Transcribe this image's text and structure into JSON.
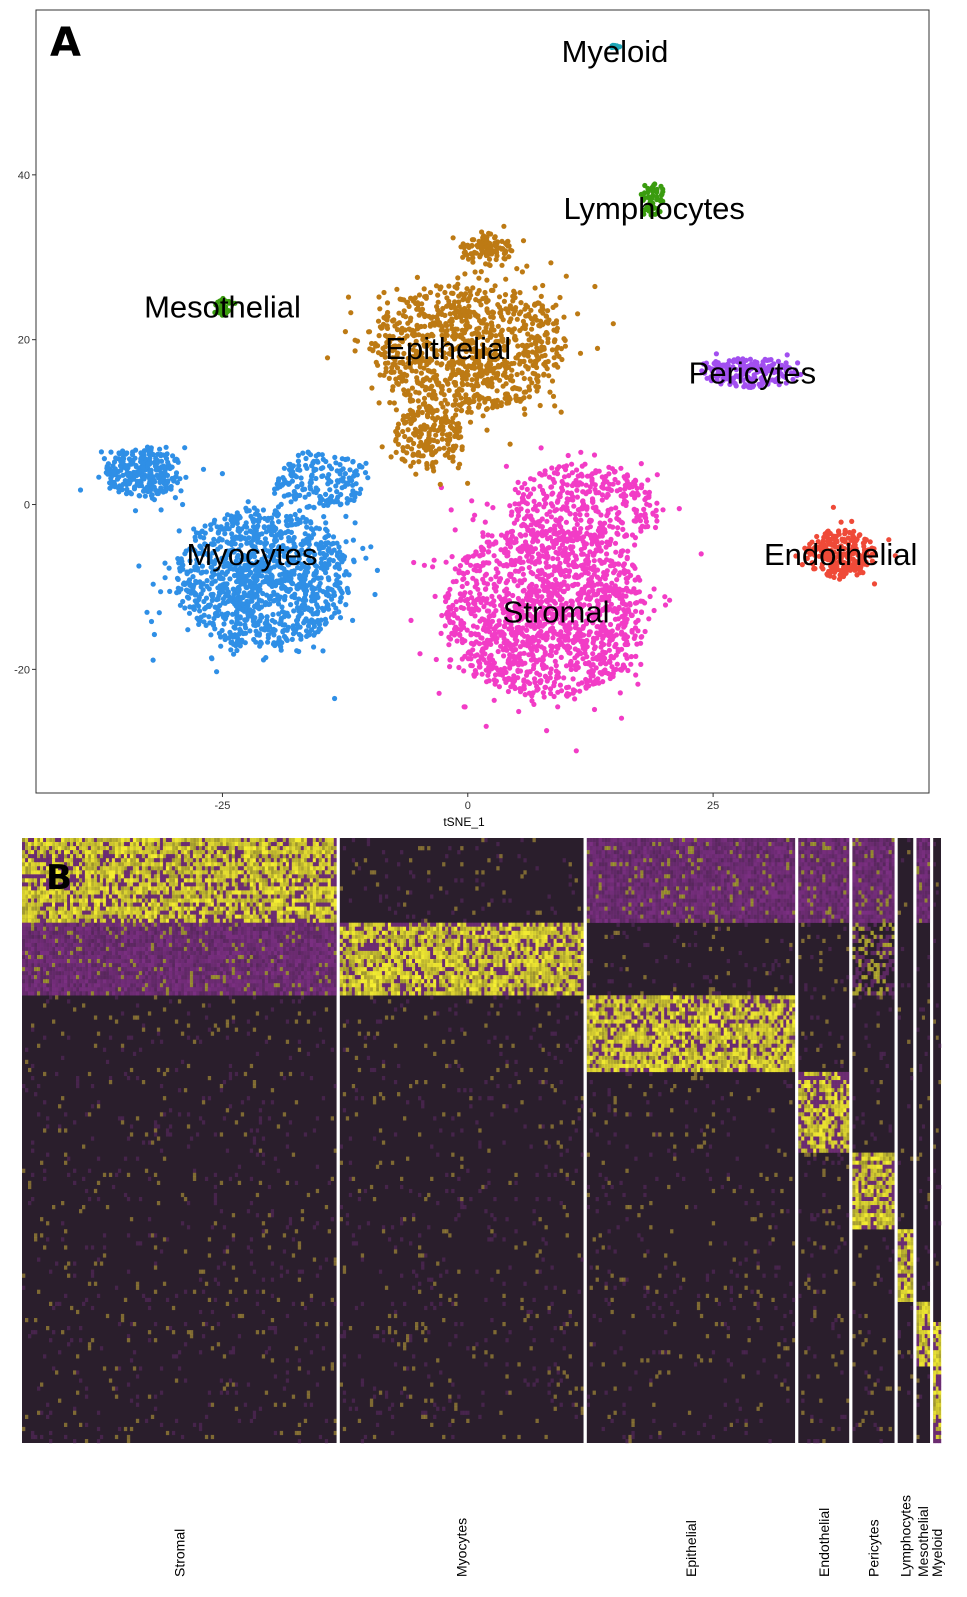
{
  "chart_data": [
    {
      "type": "scatter",
      "panel_label": "A",
      "title": "",
      "xlabel": "tSNE_1",
      "ylabel": "",
      "xlim": [
        -44,
        47
      ],
      "ylim": [
        -35,
        60
      ],
      "x_ticks": [
        -25,
        0,
        25
      ],
      "y_ticks": [
        -20,
        0,
        20,
        40
      ],
      "grid": false,
      "legend": "none",
      "series": [
        {
          "name": "Stromal",
          "color": "#f23cc6",
          "point_count": 1900,
          "labelled_center": [
            9,
            -13
          ],
          "blobs": [
            [
              8,
              -13,
              10.5,
              10.5,
              0.8
            ],
            [
              12,
              0,
              8,
              5,
              0.2
            ]
          ]
        },
        {
          "name": "Myocytes",
          "color": "#2f8fe6",
          "point_count": 1700,
          "labelled_center": [
            -22,
            -6
          ],
          "blobs": [
            [
              -21,
              -9,
              9,
              8.5,
              0.7
            ],
            [
              -33,
              4,
              4,
              3,
              0.18
            ],
            [
              -15,
              3,
              5,
              3.5,
              0.12
            ]
          ]
        },
        {
          "name": "Epithelial",
          "color": "#bd7a14",
          "point_count": 1300,
          "labelled_center": [
            -2,
            19
          ],
          "blobs": [
            [
              0,
              19,
              10,
              8,
              0.75
            ],
            [
              -4,
              8,
              4,
              4,
              0.15
            ],
            [
              2,
              31,
              2.5,
              2,
              0.1
            ]
          ]
        },
        {
          "name": "Pericytes",
          "color": "#a24ff0",
          "point_count": 200,
          "labelled_center": [
            29,
            16
          ],
          "blobs": [
            [
              29,
              16,
              5,
              1.8,
              1
            ]
          ]
        },
        {
          "name": "Endothelial",
          "color": "#ef4a38",
          "point_count": 230,
          "labelled_center": [
            38,
            -6
          ],
          "blobs": [
            [
              38,
              -6,
              3.5,
              3,
              1
            ]
          ]
        },
        {
          "name": "Mesothelial",
          "color": "#3a9c0f",
          "point_count": 35,
          "labelled_center": [
            -25,
            24
          ],
          "blobs": [
            [
              -25,
              24,
              0.8,
              1.2,
              1
            ]
          ]
        },
        {
          "name": "Lymphocytes",
          "color": "#3a9c0f",
          "point_count": 60,
          "labelled_center": [
            19,
            36
          ],
          "blobs": [
            [
              19,
              37,
              1.2,
              2.0,
              1
            ]
          ]
        },
        {
          "name": "Myeloid",
          "color": "#1fa7b8",
          "point_count": 10,
          "labelled_center": [
            15,
            55
          ],
          "blobs": [
            [
              15,
              55.5,
              0.6,
              0.3,
              1
            ]
          ]
        }
      ]
    },
    {
      "type": "heatmap",
      "panel_label": "B",
      "title": "",
      "xlabel": "",
      "ylabel": "",
      "colors": {
        "low": "#2a1e2c",
        "mid": "#7b2f82",
        "high": "#f7f032"
      },
      "columns": [
        {
          "name": "Stromal",
          "relative_width": 320
        },
        {
          "name": "Myocytes",
          "relative_width": 248
        },
        {
          "name": "Epithelial",
          "relative_width": 212
        },
        {
          "name": "Endothelial",
          "relative_width": 52
        },
        {
          "name": "Pericytes",
          "relative_width": 43
        },
        {
          "name": "Lymphocytes",
          "relative_width": 16
        },
        {
          "name": "Mesothelial",
          "relative_width": 14
        },
        {
          "name": "Myeloid",
          "relative_width": 8
        }
      ],
      "marker_blocks": [
        {
          "cluster": "Stromal",
          "row_start": 0.0,
          "row_end": 0.138
        },
        {
          "cluster": "Myocytes",
          "row_start": 0.138,
          "row_end": 0.261
        },
        {
          "cluster": "Epithelial",
          "row_start": 0.261,
          "row_end": 0.39
        },
        {
          "cluster": "Endothelial",
          "row_start": 0.39,
          "row_end": 0.52
        },
        {
          "cluster": "Pericytes",
          "row_start": 0.52,
          "row_end": 0.649
        },
        {
          "cluster": "Lymphocytes",
          "row_start": 0.649,
          "row_end": 0.766
        },
        {
          "cluster": "Mesothelial",
          "row_start": 0.766,
          "row_end": 0.875
        },
        {
          "cluster": "Myeloid",
          "row_start": 0.802,
          "row_end": 1.0
        }
      ],
      "secondary_blocks": [
        {
          "cluster": "Stromal",
          "row_start": 0.138,
          "row_end": 0.261,
          "level": "mid"
        },
        {
          "cluster": "Epithelial",
          "row_start": 0.0,
          "row_end": 0.138,
          "level": "mid"
        },
        {
          "cluster": "Endothelial",
          "row_start": 0.0,
          "row_end": 0.138,
          "level": "mid"
        },
        {
          "cluster": "Pericytes",
          "row_start": 0.0,
          "row_end": 0.138,
          "level": "mid"
        },
        {
          "cluster": "Pericytes",
          "row_start": 0.138,
          "row_end": 0.261,
          "level": "high-sparse"
        },
        {
          "cluster": "Mesothelial",
          "row_start": 0.0,
          "row_end": 0.138,
          "level": "mid"
        }
      ]
    }
  ]
}
